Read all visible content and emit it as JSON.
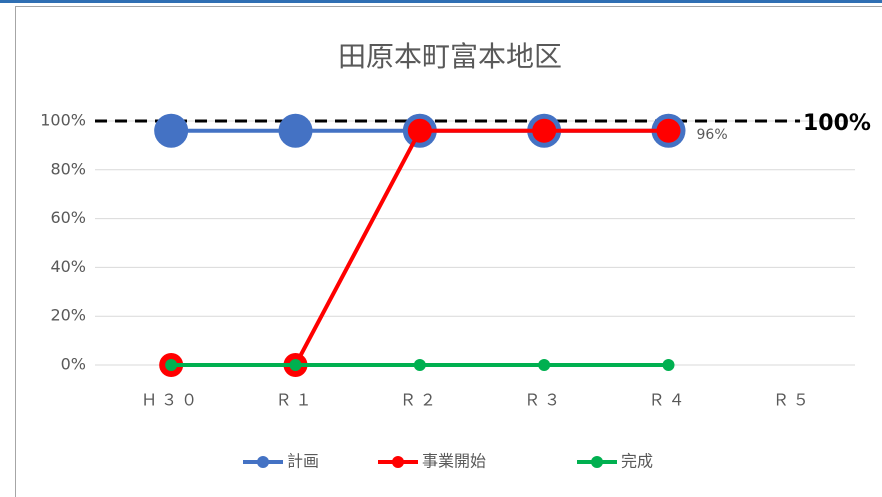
{
  "chart_data": {
    "type": "line",
    "title": "田原本町富本地区",
    "categories": [
      "Ｈ３０",
      "Ｒ１",
      "Ｒ２",
      "Ｒ３",
      "Ｒ４",
      "Ｒ５"
    ],
    "series": [
      {
        "name": "計画",
        "color": "#4472c4",
        "values": [
          96,
          96,
          96,
          96,
          96,
          null
        ],
        "value_labels": [
          null,
          null,
          null,
          null,
          "96%",
          null
        ]
      },
      {
        "name": "事業開始",
        "color": "#ff0000",
        "values": [
          0,
          0,
          96,
          96,
          96,
          null
        ]
      },
      {
        "name": "完成",
        "color": "#00b050",
        "values": [
          0,
          0,
          0,
          0,
          0,
          null
        ]
      }
    ],
    "ylim": [
      0,
      100
    ],
    "yticks": [
      {
        "value": 0,
        "label": "0%"
      },
      {
        "value": 20,
        "label": "20%"
      },
      {
        "value": 40,
        "label": "40%"
      },
      {
        "value": 60,
        "label": "60%"
      },
      {
        "value": 80,
        "label": "80%"
      },
      {
        "value": 100,
        "label": "100%"
      }
    ],
    "grid": true,
    "reference_line": {
      "value": 100,
      "label": "100%"
    },
    "legend": "bottom"
  }
}
